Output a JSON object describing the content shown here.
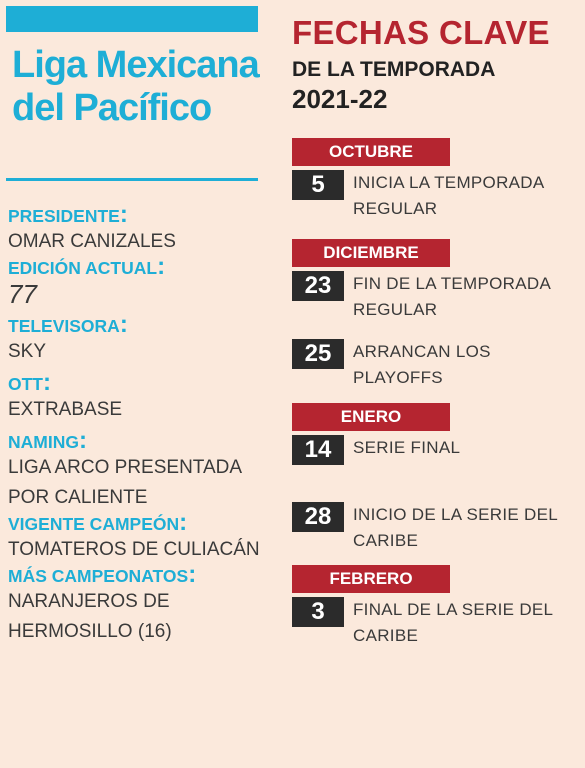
{
  "left": {
    "title": "Liga Mexicana del Pacífico",
    "facts": [
      {
        "label": "Presidente",
        "value": "Omar Canizales"
      },
      {
        "label": "Edición actual",
        "value": "77"
      },
      {
        "label": "Televisora",
        "value": "Sky"
      },
      {
        "label": "OTT",
        "value": "Extrabase"
      },
      {
        "label": "Naming",
        "value": "Liga Arco presentada por Caliente"
      },
      {
        "label": "Vigente campeón",
        "value": "Tomateros de Culiacán"
      },
      {
        "label": "Más campeonatos",
        "value": "Naranjeros de Hermosillo (16)"
      }
    ]
  },
  "right": {
    "heading_line1": "FECHAS CLAVE",
    "heading_line2": "DE LA TEMPORADA",
    "heading_line3": "2021-22",
    "months": [
      "OCTUBRE",
      "DICIEMBRE",
      "ENERO",
      "FEBRERO"
    ],
    "events": [
      {
        "day": "5",
        "text": "Inicia la temporada regular"
      },
      {
        "day": "23",
        "text": "Fin de la temporada regular"
      },
      {
        "day": "25",
        "text": "Arrancan los playoffs"
      },
      {
        "day": "14",
        "text": "Serie final"
      },
      {
        "day": "28",
        "text": "Inicio de la Serie del Caribe"
      },
      {
        "day": "3",
        "text": "Final de la Serie del Caribe"
      }
    ]
  },
  "colors": {
    "accent_blue": "#1eaed6",
    "accent_red": "#b52530",
    "dark": "#2b2b2b",
    "background": "#fbe9dc"
  }
}
